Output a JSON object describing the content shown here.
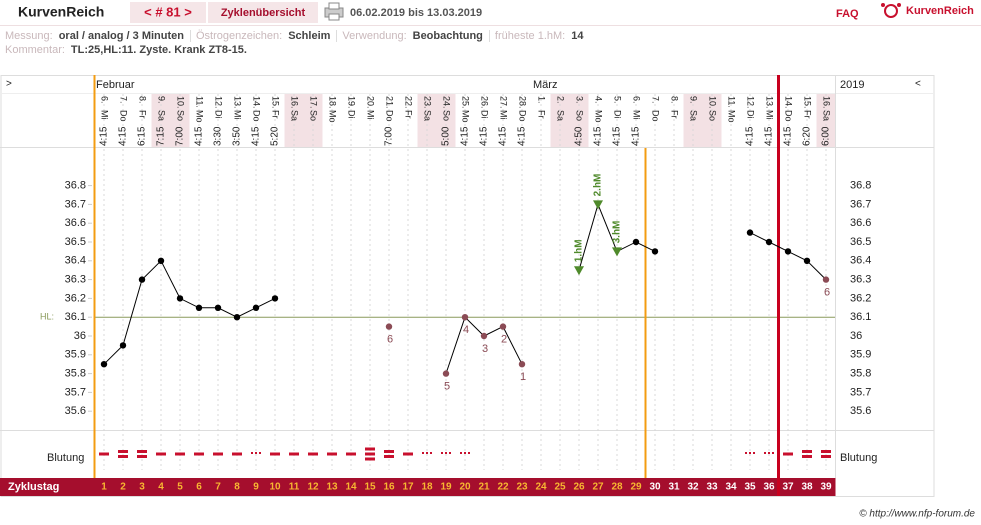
{
  "header": {
    "app": "KurvenReich",
    "cycle_nav": "< # 81 >",
    "overview": "Zyklenübersicht",
    "range": "06.02.2019 bis 13.03.2019",
    "faq": "FAQ",
    "logo": "KurvenReich"
  },
  "info": {
    "fields": [
      {
        "label": "Messung:",
        "value": "oral / analog / 3 Minuten"
      },
      {
        "label": "Östrogenzeichen:",
        "value": "Schleim"
      },
      {
        "label": "Verwendung:",
        "value": "Beobachtung"
      },
      {
        "label": "früheste 1.hM:",
        "value": "14"
      }
    ],
    "comment_label": "Kommentar:",
    "comment": "TL:25,HL:11. Zyste. Krank ZT8-15."
  },
  "chart_data": {
    "type": "line",
    "nav_prev": ">",
    "nav_next": "<",
    "year": "2019",
    "months": [
      {
        "x": 1,
        "label": "Februar"
      },
      {
        "x": 24,
        "label": "März"
      }
    ],
    "x": [
      1,
      2,
      3,
      4,
      5,
      6,
      7,
      8,
      9,
      10,
      11,
      12,
      13,
      14,
      15,
      16,
      17,
      18,
      19,
      20,
      21,
      22,
      23,
      24,
      25,
      26,
      27,
      28,
      29,
      30,
      31,
      32,
      33,
      34,
      35,
      36,
      37,
      38,
      39
    ],
    "dates": [
      "6.",
      "7.",
      "8.",
      "9.",
      "10.",
      "11.",
      "12.",
      "13.",
      "14.",
      "15.",
      "16.",
      "17.",
      "18.",
      "19.",
      "20.",
      "21.",
      "22.",
      "23.",
      "24.",
      "25.",
      "26.",
      "27.",
      "28.",
      "1.",
      "2.",
      "3.",
      "4.",
      "5.",
      "6.",
      "7.",
      "8.",
      "9.",
      "10.",
      "11.",
      "12.",
      "13.",
      "14.",
      "15.",
      "16."
    ],
    "weekdays": [
      "Mi",
      "Do",
      "Fr",
      "Sa",
      "So",
      "Mo",
      "Di",
      "Mi",
      "Do",
      "Fr",
      "Sa",
      "So",
      "Mo",
      "Di",
      "Mi",
      "Do",
      "Fr",
      "Sa",
      "So",
      "Mo",
      "Di",
      "Mi",
      "Do",
      "Fr",
      "Sa",
      "So",
      "Mo",
      "Di",
      "Mi",
      "Do",
      "Fr",
      "Sa",
      "So",
      "Mo",
      "Di",
      "Mi",
      "Do",
      "Fr",
      "Sa"
    ],
    "times": [
      "4:15",
      "4:15",
      "6:15",
      "7:15",
      "7:00",
      "4:15",
      "3:30",
      "3:50",
      "4:15",
      "5:20",
      null,
      null,
      null,
      null,
      null,
      "7:00",
      null,
      null,
      "5:00",
      "4:15",
      "4:15",
      "4:15",
      "4:15",
      null,
      null,
      "4:50",
      "4:15",
      "4:15",
      "4:15",
      null,
      null,
      null,
      null,
      null,
      "4:15",
      "4:15",
      "4:15",
      "6:20",
      "6:00"
    ],
    "shaded_days": [
      4,
      5,
      11,
      12,
      18,
      19,
      25,
      26,
      32,
      33,
      39
    ],
    "shade_color": "#f3e1e4",
    "series": [
      {
        "color": "#000000",
        "values": [
          35.85,
          35.95,
          36.3,
          36.4,
          36.2,
          36.15,
          36.15,
          36.1,
          36.15,
          36.2,
          null,
          null,
          null,
          null,
          null,
          36.05,
          null,
          null,
          35.8,
          36.1,
          36.0,
          36.05,
          35.85,
          null,
          null,
          36.35,
          36.7,
          36.45,
          36.5,
          36.45,
          null,
          null,
          null,
          null,
          36.55,
          36.5,
          36.45,
          36.4,
          36.3
        ],
        "marker_colors": [
          "#000000",
          "#000000",
          "#000000",
          "#000000",
          "#000000",
          "#000000",
          "#000000",
          "#000000",
          "#000000",
          "#000000",
          null,
          null,
          null,
          null,
          null,
          "#8b4b55",
          null,
          null,
          "#8b4b55",
          "#8b4b55",
          "#8b4b55",
          "#8b4b55",
          "#8b4b55",
          null,
          null,
          "#4f8a2b",
          "#4f8a2b",
          "#4f8a2b",
          "#000000",
          "#000000",
          null,
          null,
          null,
          null,
          "#000000",
          "#000000",
          "#000000",
          "#000000",
          "#8b4b55"
        ],
        "marker_shapes": [
          "circle",
          "circle",
          "circle",
          "circle",
          "circle",
          "circle",
          "circle",
          "circle",
          "circle",
          "circle",
          null,
          null,
          null,
          null,
          null,
          "circle",
          null,
          null,
          "circle",
          "circle",
          "circle",
          "circle",
          "circle",
          null,
          null,
          "triangle",
          "triangle",
          "triangle",
          "circle",
          "circle",
          null,
          null,
          null,
          null,
          "circle",
          "circle",
          "circle",
          "circle",
          "circle"
        ]
      }
    ],
    "annotations": [
      {
        "x": 16,
        "label": "6"
      },
      {
        "x": 19,
        "label": "5"
      },
      {
        "x": 20,
        "label": "4"
      },
      {
        "x": 21,
        "label": "3"
      },
      {
        "x": 22,
        "label": "2"
      },
      {
        "x": 23,
        "label": "1"
      },
      {
        "x": 26,
        "label": "1.hM"
      },
      {
        "x": 27,
        "label": "2.hM"
      },
      {
        "x": 28,
        "label": "3.hM"
      },
      {
        "x": 39,
        "label": "6"
      }
    ],
    "ylim": [
      35.5,
      37.0
    ],
    "yticks": [
      35.6,
      35.7,
      35.8,
      35.9,
      36,
      36.1,
      36.2,
      36.3,
      36.4,
      36.5,
      36.6,
      36.7,
      36.8
    ],
    "hl": {
      "value": 36.1,
      "label": "HL:",
      "color": "#8a9a5b"
    },
    "bleeding_label": "Blutung",
    "bleeding": [
      2,
      3,
      3,
      2,
      2,
      2,
      2,
      2,
      1,
      2,
      2,
      2,
      2,
      2,
      4,
      3,
      2,
      1,
      1,
      1,
      null,
      null,
      null,
      null,
      null,
      null,
      null,
      null,
      null,
      null,
      null,
      null,
      null,
      null,
      1,
      1,
      2,
      3,
      3
    ],
    "bleeding_color": "#c8102e",
    "cycle_label": "Zyklustag",
    "cycle_boundaries": {
      "x": [
        0.5,
        29.5
      ],
      "color": "#f39c12"
    },
    "cycle_bar_color": "#a50e2d",
    "current_day_color": "#f7b731",
    "other_day_color": "#ffffff",
    "marker_line": {
      "x": 36.5,
      "color": "#c8001e"
    },
    "copyright": "© http://www.nfp-forum.de"
  }
}
